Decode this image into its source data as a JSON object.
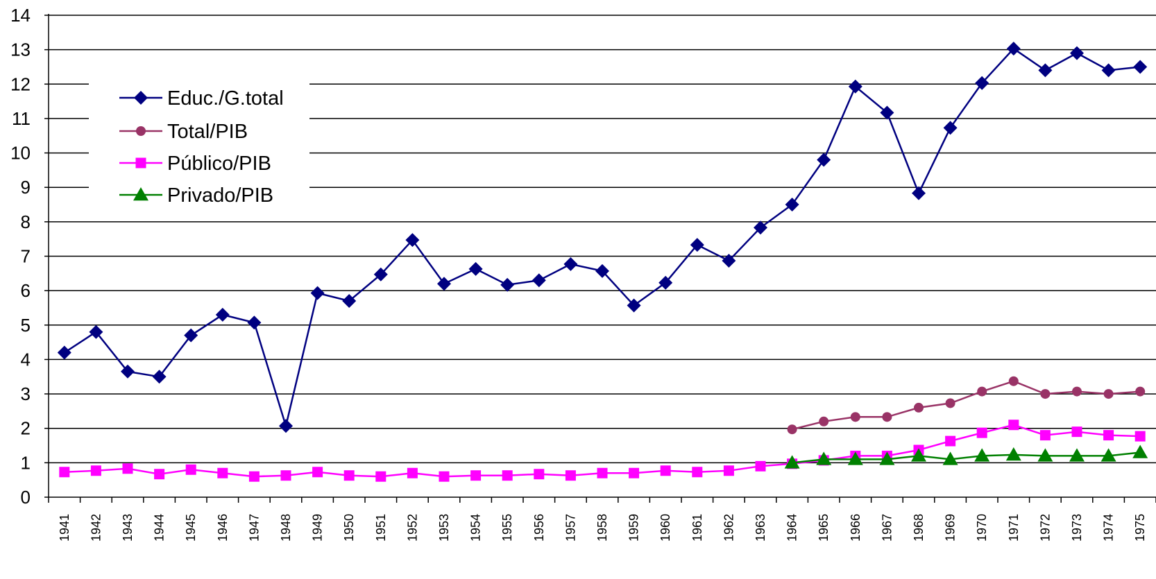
{
  "chart_data": {
    "type": "line",
    "title": "",
    "xlabel": "",
    "ylabel": "",
    "ylim": [
      0,
      14
    ],
    "yticks": [
      0,
      1,
      2,
      3,
      4,
      5,
      6,
      7,
      8,
      9,
      10,
      11,
      12,
      13,
      14
    ],
    "grid": true,
    "legend_position": "top-left",
    "x": [
      "1941",
      "1942",
      "1943",
      "1944",
      "1945",
      "1946",
      "1947",
      "1948",
      "1949",
      "1950",
      "1951",
      "1952",
      "1953",
      "1954",
      "1955",
      "1956",
      "1957",
      "1958",
      "1959",
      "1960",
      "1961",
      "1962",
      "1963",
      "1964",
      "1965",
      "1966",
      "1967",
      "1968",
      "1969",
      "1970",
      "1971",
      "1972",
      "1973",
      "1974",
      "1975"
    ],
    "series": [
      {
        "name": "Educ./G.total",
        "color": "#000080",
        "marker": "diamond",
        "values": [
          4.2,
          4.8,
          3.65,
          3.5,
          4.7,
          5.3,
          5.07,
          2.07,
          5.93,
          5.7,
          6.47,
          7.47,
          6.2,
          6.63,
          6.17,
          6.3,
          6.77,
          6.57,
          5.57,
          6.23,
          7.33,
          6.87,
          7.83,
          8.5,
          9.8,
          11.93,
          11.17,
          8.83,
          10.73,
          12.03,
          13.03,
          12.4,
          12.9,
          12.4,
          12.5
        ]
      },
      {
        "name": "Total/PIB",
        "color": "#993366",
        "marker": "circle",
        "values": [
          null,
          null,
          null,
          null,
          null,
          null,
          null,
          null,
          null,
          null,
          null,
          null,
          null,
          null,
          null,
          null,
          null,
          null,
          null,
          null,
          null,
          null,
          null,
          1.97,
          2.2,
          2.33,
          2.33,
          2.6,
          2.73,
          3.07,
          3.37,
          3.0,
          3.07,
          3.0,
          3.07
        ]
      },
      {
        "name": "Público/PIB",
        "color": "#FF00FF",
        "marker": "square",
        "values": [
          0.73,
          0.77,
          0.83,
          0.67,
          0.8,
          0.7,
          0.6,
          0.63,
          0.73,
          0.63,
          0.6,
          0.7,
          0.6,
          0.63,
          0.63,
          0.67,
          0.63,
          0.7,
          0.7,
          0.77,
          0.73,
          0.77,
          0.9,
          0.97,
          1.07,
          1.2,
          1.2,
          1.37,
          1.63,
          1.87,
          2.1,
          1.8,
          1.9,
          1.8,
          1.77
        ]
      },
      {
        "name": "Privado/PIB",
        "color": "#008000",
        "marker": "triangle",
        "values": [
          null,
          null,
          null,
          null,
          null,
          null,
          null,
          null,
          null,
          null,
          null,
          null,
          null,
          null,
          null,
          null,
          null,
          null,
          null,
          null,
          null,
          null,
          null,
          1.0,
          1.1,
          1.1,
          1.1,
          1.2,
          1.1,
          1.2,
          1.23,
          1.2,
          1.2,
          1.2,
          1.3
        ]
      }
    ]
  }
}
